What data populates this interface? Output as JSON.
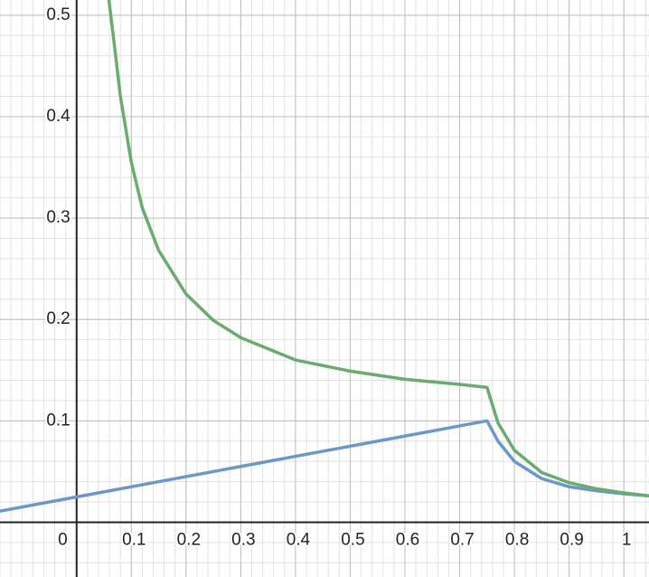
{
  "chart_data": {
    "type": "line",
    "xlim": [
      -0.14,
      1.046
    ],
    "ylim": [
      -0.054,
      0.515
    ],
    "xticks": [
      0.1,
      0.2,
      0.3,
      0.4,
      0.5,
      0.6,
      0.7,
      0.8,
      0.9,
      1
    ],
    "yticks": [
      0.1,
      0.2,
      0.3,
      0.4,
      0.5
    ],
    "origin_label": "0",
    "grid": true,
    "series": [
      {
        "color": "#6b97c9",
        "x": [
          -0.14,
          0.75,
          0.77,
          0.8,
          0.85,
          0.9,
          0.95,
          1.0,
          1.046
        ],
        "values": [
          0.011,
          0.1,
          0.08,
          0.06,
          0.043,
          0.035,
          0.031,
          0.028,
          0.026
        ]
      },
      {
        "color": "#6aab6e",
        "x": [
          0.058,
          0.07,
          0.08,
          0.1,
          0.12,
          0.15,
          0.2,
          0.25,
          0.3,
          0.4,
          0.5,
          0.6,
          0.7,
          0.75,
          0.77,
          0.8,
          0.85,
          0.9,
          0.95,
          1.0,
          1.046
        ],
        "values": [
          0.52,
          0.466,
          0.42,
          0.355,
          0.31,
          0.268,
          0.225,
          0.199,
          0.182,
          0.16,
          0.149,
          0.141,
          0.136,
          0.133,
          0.098,
          0.071,
          0.049,
          0.039,
          0.033,
          0.029,
          0.026
        ]
      }
    ]
  }
}
